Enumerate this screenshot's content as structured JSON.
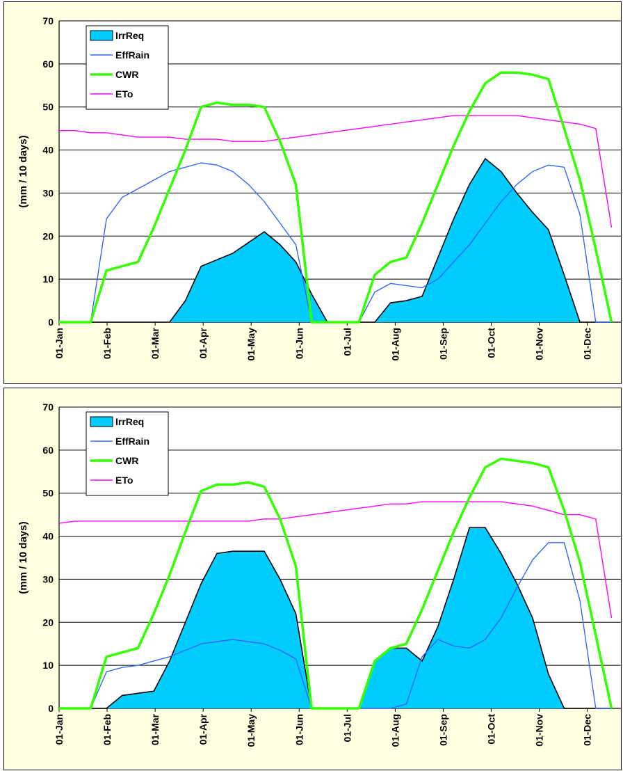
{
  "chart_data": [
    {
      "type": "line",
      "ylabel": "(mm / 10 days)",
      "ylim": [
        0,
        70
      ],
      "yticks": [
        "0",
        "10",
        "20",
        "30",
        "40",
        "50",
        "60",
        "70"
      ],
      "month_labels": [
        "01-Jan",
        "01-Feb",
        "01-Mar",
        "01-Apr",
        "01-May",
        "01-Jun",
        "01-Jul",
        "01-Aug",
        "01-Sep",
        "01-Oct",
        "01-Nov",
        "01-Dec"
      ],
      "legend_position": "top-left",
      "grid": true,
      "x_unit": "decade (10-day period, 1-36)",
      "x": [
        1,
        2,
        3,
        4,
        5,
        6,
        7,
        8,
        9,
        10,
        11,
        12,
        13,
        14,
        15,
        16,
        17,
        18,
        19,
        20,
        21,
        22,
        23,
        24,
        25,
        26,
        27,
        28,
        29,
        30,
        31,
        32,
        33,
        34,
        35,
        36
      ],
      "series": [
        {
          "name": "IrrReq",
          "style": "area",
          "color": "#00ccff",
          "values": [
            0,
            0,
            0,
            0,
            0,
            0,
            0,
            0,
            5,
            13,
            14.5,
            16,
            18.5,
            21,
            18,
            14,
            6.5,
            0,
            0,
            0,
            0,
            4.5,
            5,
            6,
            15,
            24,
            32,
            38,
            35,
            30,
            25.5,
            21.5,
            11,
            0,
            0,
            0
          ]
        },
        {
          "name": "EffRain",
          "style": "line",
          "color": "#3366ff",
          "values": [
            0,
            0,
            0,
            24,
            29,
            31,
            33,
            35,
            36,
            37,
            36.5,
            35,
            32,
            28,
            23,
            18,
            0,
            0,
            0,
            0,
            7,
            9,
            8.5,
            8,
            10,
            14,
            18,
            23,
            28,
            32,
            35,
            36.5,
            36,
            25,
            0,
            0
          ]
        },
        {
          "name": "CWR",
          "style": "line",
          "color": "#33ff00",
          "values": [
            0,
            0,
            0,
            12,
            13,
            14,
            22,
            31,
            40,
            50,
            51,
            50.5,
            50.5,
            50,
            42,
            32,
            0,
            0,
            0,
            0,
            11,
            14,
            15,
            23,
            32,
            41,
            49,
            55.5,
            58,
            58,
            57.5,
            56.5,
            45,
            33,
            17,
            0
          ]
        },
        {
          "name": "ETo",
          "style": "line",
          "color": "#ff00ff",
          "values": [
            44.5,
            44.5,
            44,
            44,
            43.5,
            43,
            43,
            43,
            42.5,
            42.5,
            42.5,
            42,
            42,
            42,
            42.5,
            43,
            43.5,
            44,
            44.5,
            45,
            45.5,
            46,
            46.5,
            47,
            47.5,
            48,
            48,
            48,
            48,
            48,
            47.5,
            47,
            46.5,
            46,
            45,
            22
          ]
        }
      ]
    },
    {
      "type": "line",
      "ylabel": "(mm / 10 days)",
      "ylim": [
        0,
        70
      ],
      "yticks": [
        "0",
        "10",
        "20",
        "30",
        "40",
        "50",
        "60",
        "70"
      ],
      "month_labels": [
        "01-Jan",
        "01-Feb",
        "01-Mar",
        "01-Apr",
        "01-May",
        "01-Jun",
        "01-Jul",
        "01-Aug",
        "01-Sep",
        "01-Oct",
        "01-Nov",
        "01-Dec"
      ],
      "legend_position": "top-left",
      "grid": true,
      "x_unit": "decade (10-day period, 1-36)",
      "x": [
        1,
        2,
        3,
        4,
        5,
        6,
        7,
        8,
        9,
        10,
        11,
        12,
        13,
        14,
        15,
        16,
        17,
        18,
        19,
        20,
        21,
        22,
        23,
        24,
        25,
        26,
        27,
        28,
        29,
        30,
        31,
        32,
        33,
        34,
        35,
        36
      ],
      "series": [
        {
          "name": "IrrReq",
          "style": "area",
          "color": "#00ccff",
          "values": [
            0,
            0,
            0,
            0,
            3,
            3.5,
            4,
            11,
            20,
            29,
            36,
            36.5,
            36.5,
            36.5,
            30,
            22,
            0,
            0,
            0,
            0,
            11,
            14,
            14,
            11,
            19,
            30,
            42,
            42,
            36,
            29,
            21,
            8,
            0,
            0,
            0,
            0
          ]
        },
        {
          "name": "EffRain",
          "style": "line",
          "color": "#3366ff",
          "values": [
            0,
            0,
            0,
            8.5,
            9.5,
            10,
            11,
            12,
            13.5,
            15,
            15.5,
            16,
            15.5,
            15,
            13.5,
            11.5,
            0,
            0,
            0,
            0,
            0,
            0,
            1,
            12,
            16,
            14.5,
            14,
            16,
            21,
            28,
            34.5,
            38.5,
            38.5,
            25,
            0,
            0
          ]
        },
        {
          "name": "CWR",
          "style": "line",
          "color": "#33ff00",
          "values": [
            0,
            0,
            0,
            12,
            13,
            14,
            22,
            31,
            41,
            50.5,
            52,
            52,
            52.5,
            51.5,
            44,
            33,
            0,
            0,
            0,
            0,
            11,
            14,
            15,
            23,
            32,
            41,
            49,
            56,
            58,
            57.5,
            57,
            56,
            46,
            34,
            17,
            0
          ]
        },
        {
          "name": "ETo",
          "style": "line",
          "color": "#ff00ff",
          "values": [
            43,
            43.5,
            43.5,
            43.5,
            43.5,
            43.5,
            43.5,
            43.5,
            43.5,
            43.5,
            43.5,
            43.5,
            43.5,
            44,
            44,
            44.5,
            45,
            45.5,
            46,
            46.5,
            47,
            47.5,
            47.5,
            48,
            48,
            48,
            48,
            48,
            48,
            47.5,
            47,
            46,
            45,
            45,
            44,
            21
          ]
        }
      ]
    }
  ]
}
